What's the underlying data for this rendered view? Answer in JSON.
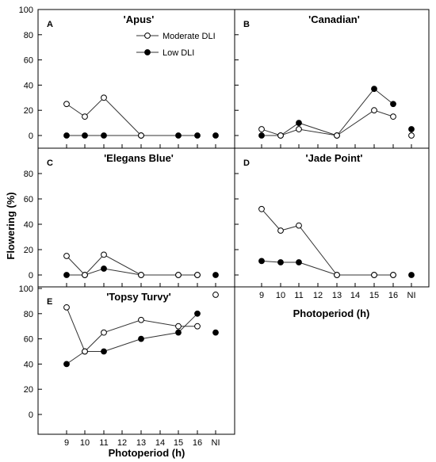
{
  "chart_data": {
    "type": "line",
    "ylabel": "Flowering (%)",
    "xlabel": "Photoperiod (h)",
    "x_categories": [
      "9",
      "10",
      "11",
      "12",
      "13",
      "14",
      "15",
      "16",
      "NI"
    ],
    "y_ticks": [
      "0",
      "20",
      "40",
      "60",
      "80",
      "100"
    ],
    "ylim": [
      0,
      100
    ],
    "legend": {
      "position": "top-right of panel A",
      "entries": [
        {
          "label": "Moderate DLI",
          "marker": "open-circle"
        },
        {
          "label": "Low DLI",
          "marker": "filled-circle"
        }
      ]
    },
    "panels": [
      {
        "letter": "A",
        "title": "'Apus'",
        "series": [
          {
            "name": "Moderate DLI",
            "marker": "open-circle",
            "segments": [
              [
                [
                  9,
                  25
                ],
                [
                  10,
                  15
                ],
                [
                  11,
                  30
                ],
                [
                  13,
                  0
                ]
              ]
            ],
            "isolated": []
          },
          {
            "name": "Low DLI",
            "marker": "filled-circle",
            "segments": [
              [
                [
                  9,
                  0
                ],
                [
                  10,
                  0
                ],
                [
                  11,
                  0
                ],
                [
                  13,
                  0
                ],
                [
                  15,
                  0
                ],
                [
                  16,
                  0
                ]
              ]
            ],
            "isolated": [
              [
                "NI",
                0
              ]
            ]
          }
        ]
      },
      {
        "letter": "B",
        "title": "'Canadian'",
        "series": [
          {
            "name": "Moderate DLI",
            "marker": "open-circle",
            "segments": [
              [
                [
                  9,
                  5
                ],
                [
                  10,
                  0
                ],
                [
                  11,
                  5
                ],
                [
                  13,
                  0
                ],
                [
                  15,
                  20
                ],
                [
                  16,
                  15
                ]
              ]
            ],
            "isolated": [
              [
                "NI",
                0
              ]
            ]
          },
          {
            "name": "Low DLI",
            "marker": "filled-circle",
            "segments": [
              [
                [
                  9,
                  0
                ],
                [
                  10,
                  0
                ],
                [
                  11,
                  10
                ],
                [
                  13,
                  0
                ],
                [
                  15,
                  37
                ],
                [
                  16,
                  25
                ]
              ]
            ],
            "isolated": [
              [
                "NI",
                5
              ]
            ]
          }
        ]
      },
      {
        "letter": "C",
        "title": "'Elegans Blue'",
        "series": [
          {
            "name": "Moderate DLI",
            "marker": "open-circle",
            "segments": [
              [
                [
                  9,
                  15
                ],
                [
                  10,
                  0
                ],
                [
                  11,
                  16
                ],
                [
                  13,
                  0
                ],
                [
                  15,
                  0
                ],
                [
                  16,
                  0
                ]
              ]
            ],
            "isolated": []
          },
          {
            "name": "Low DLI",
            "marker": "filled-circle",
            "segments": [
              [
                [
                  9,
                  0
                ],
                [
                  10,
                  0
                ],
                [
                  11,
                  5
                ],
                [
                  13,
                  0
                ],
                [
                  15,
                  0
                ],
                [
                  16,
                  0
                ]
              ]
            ],
            "isolated": [
              [
                "NI",
                0
              ]
            ]
          }
        ]
      },
      {
        "letter": "D",
        "title": "'Jade Point'",
        "series": [
          {
            "name": "Moderate DLI",
            "marker": "open-circle",
            "segments": [
              [
                [
                  9,
                  52
                ],
                [
                  10,
                  35
                ],
                [
                  11,
                  39
                ],
                [
                  13,
                  0
                ],
                [
                  15,
                  0
                ],
                [
                  16,
                  0
                ]
              ]
            ],
            "isolated": []
          },
          {
            "name": "Low DLI",
            "marker": "filled-circle",
            "segments": [
              [
                [
                  9,
                  11
                ],
                [
                  10,
                  10
                ],
                [
                  11,
                  10
                ],
                [
                  13,
                  0
                ],
                [
                  15,
                  0
                ],
                [
                  16,
                  0
                ]
              ]
            ],
            "isolated": [
              [
                "NI",
                0
              ]
            ]
          }
        ]
      },
      {
        "letter": "E",
        "title": "'Topsy Turvy'",
        "series": [
          {
            "name": "Moderate DLI",
            "marker": "open-circle",
            "segments": [
              [
                [
                  9,
                  85
                ],
                [
                  10,
                  50
                ],
                [
                  11,
                  65
                ],
                [
                  13,
                  75
                ],
                [
                  15,
                  70
                ],
                [
                  16,
                  70
                ]
              ]
            ],
            "isolated": [
              [
                "NI",
                95
              ]
            ]
          },
          {
            "name": "Low DLI",
            "marker": "filled-circle",
            "segments": [
              [
                [
                  9,
                  40
                ],
                [
                  10,
                  50
                ],
                [
                  11,
                  50
                ],
                [
                  13,
                  60
                ],
                [
                  15,
                  65
                ],
                [
                  16,
                  80
                ]
              ]
            ],
            "isolated": [
              [
                "NI",
                65
              ]
            ]
          }
        ]
      }
    ]
  }
}
